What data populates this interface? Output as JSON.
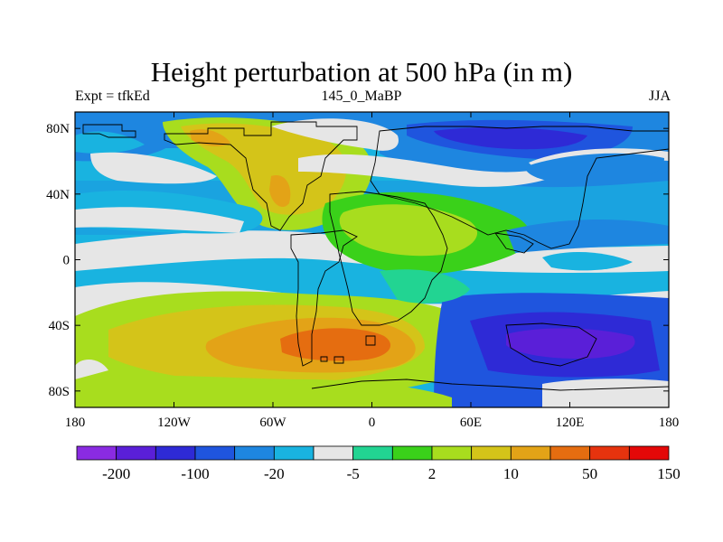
{
  "title": "Height perturbation at 500 hPa (in m)",
  "subtitle_left": "Expt = tfkEd",
  "subtitle_center": "145_0_MaBP",
  "subtitle_right": "JJA",
  "map": {
    "projection": "equirectangular",
    "lon_range": [
      -180,
      180
    ],
    "lat_range": [
      -90,
      90
    ],
    "x_ticks": [
      {
        "lon": -180,
        "label": "180"
      },
      {
        "lon": -120,
        "label": "120W"
      },
      {
        "lon": -60,
        "label": "60W"
      },
      {
        "lon": 0,
        "label": "0"
      },
      {
        "lon": 60,
        "label": "60E"
      },
      {
        "lon": 120,
        "label": "120E"
      },
      {
        "lon": 180,
        "label": "180"
      }
    ],
    "y_ticks": [
      {
        "lat": 80,
        "label": "80N"
      },
      {
        "lat": 40,
        "label": "40N"
      },
      {
        "lat": 0,
        "label": "0"
      },
      {
        "lat": -40,
        "label": "40S"
      },
      {
        "lat": -80,
        "label": "80S"
      }
    ]
  },
  "colorbar": {
    "colors": [
      "#8a2be2",
      "#5a1fd8",
      "#2e2ad6",
      "#1f55de",
      "#1e86e0",
      "#19b3e0",
      "#e6e6e6",
      "#22d492",
      "#3ad11a",
      "#a8dd1e",
      "#d4c419",
      "#e3a317",
      "#e56d10",
      "#e6330e",
      "#e40808"
    ],
    "labels": [
      "-200",
      "-100",
      "-20",
      "-5",
      "2",
      "10",
      "50",
      "150"
    ]
  },
  "chart_data": {
    "type": "heatmap",
    "title": "Height perturbation at 500 hPa (in m)",
    "variable": "500 hPa geopotential height perturbation",
    "units": "m",
    "levels": [
      "-200",
      "-100",
      "-20",
      "-5",
      "2",
      "10",
      "50",
      "150"
    ],
    "regions": [
      {
        "area": "South Atlantic / southern Africa ~40S",
        "value_range": [
          50,
          150
        ]
      },
      {
        "area": "South Pacific ~40S",
        "value_range": [
          10,
          50
        ]
      },
      {
        "area": "Southern Indian Ocean / Australia ~40-60S",
        "value_range": [
          -200,
          -100
        ]
      },
      {
        "area": "North Pacific high latitudes",
        "value_range": [
          -20,
          -5
        ]
      },
      {
        "area": "Northern Eurasia 50-80N",
        "value_range": [
          -100,
          -20
        ]
      },
      {
        "area": "North America / Greenland",
        "value_range": [
          10,
          50
        ]
      },
      {
        "area": "Tropical belt",
        "value_range": [
          -5,
          10
        ]
      }
    ]
  }
}
